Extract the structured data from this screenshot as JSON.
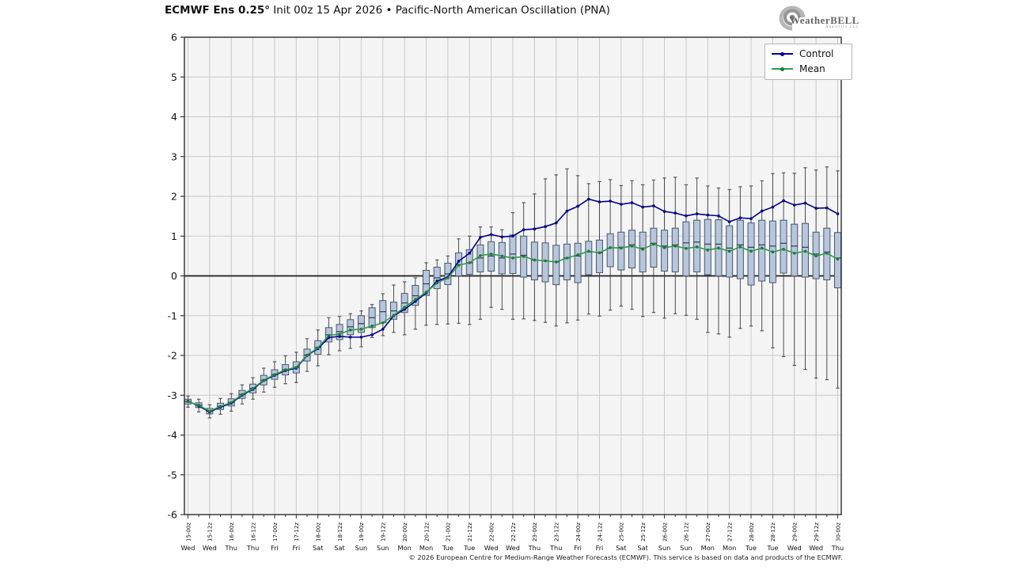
{
  "header": {
    "title_bold": "ECMWF Ens 0.25°",
    "title_rest": " Init 00z 15 Apr 2026 • Pacific-North American Oscillation (PNA)"
  },
  "logo": {
    "name": "WeatherBELL",
    "sub": "Analytics LLC"
  },
  "footer": {
    "copyright": "© 2026 European Centre for Medium-Range Weather Forecasts (ECMWF). This service is based on data and products of the ECMWF."
  },
  "chart_data": {
    "type": "line+boxplot",
    "title": "ECMWF Ens 0.25° Init 00z 15 Apr 2026 • Pacific-North American Oscillation (PNA)",
    "ylim": [
      -6,
      6
    ],
    "yticks": [
      -6,
      -5,
      -4,
      -3,
      -2,
      -1,
      0,
      1,
      2,
      3,
      4,
      5,
      6
    ],
    "grid": true,
    "zero_line": true,
    "x_step_hours": 6,
    "legend": {
      "position": "top-right",
      "entries": [
        {
          "label": "Control",
          "color": "#00008b"
        },
        {
          "label": "Mean",
          "color": "#2e9b4e"
        }
      ]
    },
    "colors": {
      "box_fill": "#b7c6dc",
      "box_stroke": "#46586e",
      "whisker": "#3c3c3c",
      "whisker_cap": "#555555",
      "grid": "#c9c9c9",
      "plot_bg": "#f4f4f4",
      "zero_line": "#1c1c1c",
      "axis_border": "#2e2e2e",
      "mean_marker": "#1f7a36"
    },
    "x_tick_labels": [
      {
        "time": "15-00z",
        "day": "Wed"
      },
      {
        "time": "15-12z",
        "day": "Wed"
      },
      {
        "time": "16-00z",
        "day": "Thu"
      },
      {
        "time": "16-12z",
        "day": "Thu"
      },
      {
        "time": "17-00z",
        "day": "Fri"
      },
      {
        "time": "17-12z",
        "day": "Fri"
      },
      {
        "time": "18-00z",
        "day": "Sat"
      },
      {
        "time": "18-12z",
        "day": "Sat"
      },
      {
        "time": "19-00z",
        "day": "Sun"
      },
      {
        "time": "19-12z",
        "day": "Sun"
      },
      {
        "time": "20-00z",
        "day": "Mon"
      },
      {
        "time": "20-12z",
        "day": "Mon"
      },
      {
        "time": "21-00z",
        "day": "Tue"
      },
      {
        "time": "21-12z",
        "day": "Tue"
      },
      {
        "time": "22-00z",
        "day": "Wed"
      },
      {
        "time": "22-12z",
        "day": "Wed"
      },
      {
        "time": "23-00z",
        "day": "Thu"
      },
      {
        "time": "23-12z",
        "day": "Thu"
      },
      {
        "time": "24-00z",
        "day": "Fri"
      },
      {
        "time": "24-12z",
        "day": "Fri"
      },
      {
        "time": "25-00z",
        "day": "Sat"
      },
      {
        "time": "25-12z",
        "day": "Sat"
      },
      {
        "time": "26-00z",
        "day": "Sun"
      },
      {
        "time": "26-12z",
        "day": "Sun"
      },
      {
        "time": "27-00z",
        "day": "Mon"
      },
      {
        "time": "27-12z",
        "day": "Mon"
      },
      {
        "time": "28-00z",
        "day": "Tue"
      },
      {
        "time": "28-12z",
        "day": "Tue"
      },
      {
        "time": "29-00z",
        "day": "Wed"
      },
      {
        "time": "29-12z",
        "day": "Wed"
      },
      {
        "time": "30-00z",
        "day": "Thu"
      }
    ],
    "columns": [
      "control",
      "mean",
      "box_low",
      "median",
      "box_high",
      "whisker_low",
      "whisker_high"
    ],
    "points": [
      [
        -3.15,
        -3.16,
        -3.22,
        -3.16,
        -3.1,
        -3.3,
        -3.02
      ],
      [
        -3.27,
        -3.25,
        -3.31,
        -3.25,
        -3.19,
        -3.42,
        -3.1
      ],
      [
        -3.42,
        -3.4,
        -3.47,
        -3.4,
        -3.33,
        -3.57,
        -3.24
      ],
      [
        -3.3,
        -3.28,
        -3.36,
        -3.28,
        -3.2,
        -3.48,
        -3.08
      ],
      [
        -3.2,
        -3.18,
        -3.27,
        -3.18,
        -3.09,
        -3.4,
        -2.96
      ],
      [
        -3.0,
        -2.98,
        -3.08,
        -2.98,
        -2.88,
        -3.22,
        -2.74
      ],
      [
        -2.85,
        -2.83,
        -2.94,
        -2.83,
        -2.72,
        -3.1,
        -2.56
      ],
      [
        -2.63,
        -2.62,
        -2.74,
        -2.62,
        -2.5,
        -2.92,
        -2.32
      ],
      [
        -2.5,
        -2.48,
        -2.6,
        -2.48,
        -2.36,
        -2.8,
        -2.16
      ],
      [
        -2.38,
        -2.36,
        -2.49,
        -2.36,
        -2.23,
        -2.71,
        -2.01
      ],
      [
        -2.32,
        -2.3,
        -2.44,
        -2.3,
        -2.16,
        -2.68,
        -1.92
      ],
      [
        -2.0,
        -1.99,
        -2.14,
        -1.99,
        -1.84,
        -2.4,
        -1.58
      ],
      [
        -1.83,
        -1.81,
        -1.97,
        -1.8,
        -1.63,
        -2.26,
        -1.36
      ],
      [
        -1.55,
        -1.5,
        -1.66,
        -1.48,
        -1.3,
        -1.98,
        -1.05
      ],
      [
        -1.52,
        -1.46,
        -1.6,
        -1.4,
        -1.22,
        -1.88,
        -1.02
      ],
      [
        -1.54,
        -1.36,
        -1.48,
        -1.28,
        -1.1,
        -1.82,
        -0.95
      ],
      [
        -1.54,
        -1.34,
        -1.42,
        -1.2,
        -1.0,
        -1.78,
        -0.88
      ],
      [
        -1.48,
        -1.26,
        -1.3,
        -1.05,
        -0.8,
        -1.55,
        -0.72
      ],
      [
        -1.34,
        -1.18,
        -1.18,
        -0.9,
        -0.62,
        -1.5,
        -0.45
      ],
      [
        -1.0,
        -0.99,
        -1.09,
        -0.88,
        -0.66,
        -1.42,
        -0.23
      ],
      [
        -0.84,
        -0.79,
        -0.92,
        -0.68,
        -0.44,
        -1.48,
        -0.15
      ],
      [
        -0.64,
        -0.59,
        -0.74,
        -0.5,
        -0.24,
        -1.34,
        -0.05
      ],
      [
        -0.43,
        -0.41,
        -0.49,
        -0.2,
        0.14,
        -1.24,
        0.33
      ],
      [
        -0.13,
        -0.18,
        -0.32,
        -0.05,
        0.22,
        -1.22,
        0.4
      ],
      [
        -0.03,
        -0.05,
        -0.22,
        0.05,
        0.32,
        -1.21,
        0.5
      ],
      [
        0.37,
        0.27,
        0.0,
        0.28,
        0.58,
        -1.19,
        0.93
      ],
      [
        0.57,
        0.33,
        0.04,
        0.33,
        0.66,
        -1.22,
        1.0
      ],
      [
        0.97,
        0.51,
        0.1,
        0.45,
        0.78,
        -1.09,
        1.23
      ],
      [
        1.04,
        0.55,
        0.12,
        0.5,
        0.86,
        -0.79,
        1.23
      ],
      [
        0.98,
        0.5,
        0.05,
        0.45,
        0.84,
        -0.84,
        1.16
      ],
      [
        1.0,
        0.45,
        0.06,
        0.55,
        1.03,
        -1.09,
        1.59
      ],
      [
        1.16,
        0.49,
        -0.03,
        0.52,
        1.0,
        -1.08,
        1.84
      ],
      [
        1.18,
        0.4,
        -0.1,
        0.4,
        0.85,
        -1.12,
        2.06
      ],
      [
        1.24,
        0.38,
        -0.15,
        0.38,
        0.83,
        -1.17,
        2.44
      ],
      [
        1.33,
        0.35,
        -0.22,
        0.35,
        0.77,
        -1.26,
        2.54
      ],
      [
        1.63,
        0.45,
        -0.1,
        0.45,
        0.8,
        -1.18,
        2.69
      ],
      [
        1.75,
        0.53,
        -0.17,
        0.5,
        0.82,
        -1.11,
        2.52
      ],
      [
        1.93,
        0.62,
        0.03,
        0.6,
        0.87,
        -0.96,
        2.32
      ],
      [
        1.86,
        0.58,
        0.08,
        0.58,
        0.9,
        -1.01,
        2.37
      ],
      [
        1.88,
        0.71,
        0.23,
        0.7,
        1.06,
        -0.86,
        2.42
      ],
      [
        1.8,
        0.7,
        0.15,
        0.72,
        1.1,
        -0.76,
        2.27
      ],
      [
        1.84,
        0.75,
        0.2,
        0.78,
        1.15,
        -0.84,
        2.39
      ],
      [
        1.73,
        0.67,
        0.1,
        0.7,
        1.1,
        -1.02,
        2.29
      ],
      [
        1.76,
        0.8,
        0.22,
        0.82,
        1.2,
        -0.92,
        2.41
      ],
      [
        1.62,
        0.71,
        0.12,
        0.75,
        1.15,
        -1.06,
        2.46
      ],
      [
        1.58,
        0.75,
        0.1,
        0.78,
        1.2,
        -0.95,
        2.48
      ],
      [
        1.51,
        0.69,
        0.0,
        0.83,
        1.36,
        -0.99,
        2.29
      ],
      [
        1.56,
        0.73,
        0.1,
        0.85,
        1.4,
        -1.09,
        2.46
      ],
      [
        1.53,
        0.65,
        0.03,
        0.8,
        1.42,
        -1.42,
        2.26
      ],
      [
        1.51,
        0.7,
        0.0,
        0.8,
        1.41,
        -1.46,
        2.21
      ],
      [
        1.36,
        0.62,
        -0.03,
        0.7,
        1.26,
        -1.54,
        2.17
      ],
      [
        1.46,
        0.73,
        -0.07,
        0.78,
        1.4,
        -1.32,
        2.24
      ],
      [
        1.44,
        0.62,
        -0.23,
        0.72,
        1.33,
        -1.26,
        2.26
      ],
      [
        1.63,
        0.7,
        -0.13,
        0.78,
        1.4,
        -1.38,
        2.39
      ],
      [
        1.73,
        0.6,
        -0.17,
        0.75,
        1.38,
        -1.81,
        2.57
      ],
      [
        1.89,
        0.67,
        0.07,
        0.82,
        1.4,
        -2.03,
        2.59
      ],
      [
        1.78,
        0.57,
        0.0,
        0.75,
        1.3,
        -2.25,
        2.58
      ],
      [
        1.83,
        0.62,
        -0.03,
        0.72,
        1.32,
        -2.35,
        2.72
      ],
      [
        1.7,
        0.5,
        -0.07,
        0.55,
        1.1,
        -2.57,
        2.66
      ],
      [
        1.71,
        0.57,
        -0.1,
        0.6,
        1.2,
        -2.61,
        2.74
      ],
      [
        1.56,
        0.42,
        -0.3,
        0.45,
        1.09,
        -2.82,
        2.64
      ]
    ]
  }
}
